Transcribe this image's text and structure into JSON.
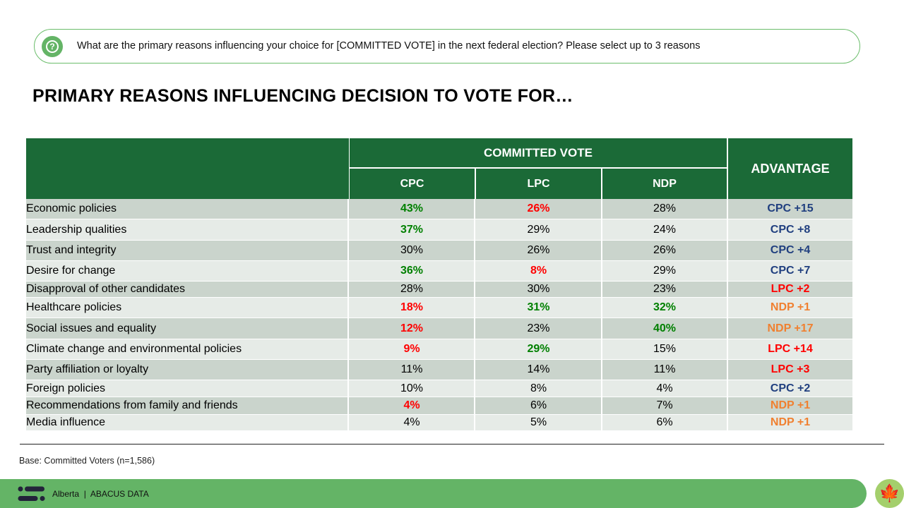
{
  "question": "What are the primary reasons influencing your choice for [COMMITTED VOTE] in the next federal election? Please select up to 3 reasons",
  "title": "PRIMARY REASONS INFLUENCING DECISION TO VOTE FOR…",
  "colors": {
    "header_green": "#1b6a37",
    "positive": "#008000",
    "negative": "#ff0000",
    "cpc": "#203f7f",
    "lpc": "#ff0000",
    "ndp": "#f08030",
    "row_dark": "#cad4cc",
    "row_light": "#e6ebe7"
  },
  "chart_data": {
    "type": "table",
    "group_header": "COMMITTED VOTE",
    "columns": [
      "CPC",
      "LPC",
      "NDP"
    ],
    "advantage_header": "ADVANTAGE",
    "rows": [
      {
        "label": "Economic policies",
        "values": [
          "43%",
          "26%",
          "28%"
        ],
        "styles": [
          "pos",
          "neg",
          ""
        ],
        "advantage": "CPC +15",
        "adv_party": "cpc"
      },
      {
        "label": "Leadership qualities",
        "values": [
          "37%",
          "29%",
          "24%"
        ],
        "styles": [
          "pos",
          "",
          ""
        ],
        "advantage": "CPC +8",
        "adv_party": "cpc"
      },
      {
        "label": "Trust and integrity",
        "values": [
          "30%",
          "26%",
          "26%"
        ],
        "styles": [
          "",
          "",
          ""
        ],
        "advantage": "CPC +4",
        "adv_party": "cpc"
      },
      {
        "label": "Desire for change",
        "values": [
          "36%",
          "8%",
          "29%"
        ],
        "styles": [
          "pos",
          "neg",
          ""
        ],
        "advantage": "CPC +7",
        "adv_party": "cpc"
      },
      {
        "label": "Disapproval of other candidates",
        "values": [
          "28%",
          "30%",
          "23%"
        ],
        "styles": [
          "",
          "",
          ""
        ],
        "advantage": "LPC +2",
        "adv_party": "lpc"
      },
      {
        "label": "Healthcare policies",
        "values": [
          "18%",
          "31%",
          "32%"
        ],
        "styles": [
          "neg",
          "pos",
          "pos"
        ],
        "advantage": "NDP +1",
        "adv_party": "ndp"
      },
      {
        "label": "Social issues and equality",
        "values": [
          "12%",
          "23%",
          "40%"
        ],
        "styles": [
          "neg",
          "",
          "pos"
        ],
        "advantage": "NDP +17",
        "adv_party": "ndp"
      },
      {
        "label": "Climate change and environmental policies",
        "values": [
          "9%",
          "29%",
          "15%"
        ],
        "styles": [
          "neg",
          "pos",
          ""
        ],
        "advantage": "LPC +14",
        "adv_party": "lpc"
      },
      {
        "label": "Party affiliation or loyalty",
        "values": [
          "11%",
          "14%",
          "11%"
        ],
        "styles": [
          "",
          "",
          ""
        ],
        "advantage": "LPC +3",
        "adv_party": "lpc"
      },
      {
        "label": "Foreign policies",
        "values": [
          "10%",
          "8%",
          "4%"
        ],
        "styles": [
          "",
          "",
          ""
        ],
        "advantage": "CPC +2",
        "adv_party": "cpc"
      },
      {
        "label": "Recommendations from family and friends",
        "values": [
          "4%",
          "6%",
          "7%"
        ],
        "styles": [
          "neg",
          "",
          ""
        ],
        "advantage": "NDP +1",
        "adv_party": "ndp"
      },
      {
        "label": "Media influence",
        "values": [
          "4%",
          "5%",
          "6%"
        ],
        "styles": [
          "",
          "",
          ""
        ],
        "advantage": "NDP +1",
        "adv_party": "ndp"
      }
    ]
  },
  "base_note": "Base: Committed Voters (n=1,586)",
  "footer": {
    "text": "Alberta  |  ABACUS DATA",
    "logo_icon": "abacus-logo-icon",
    "badge_icon": "maple-leaf-icon"
  }
}
